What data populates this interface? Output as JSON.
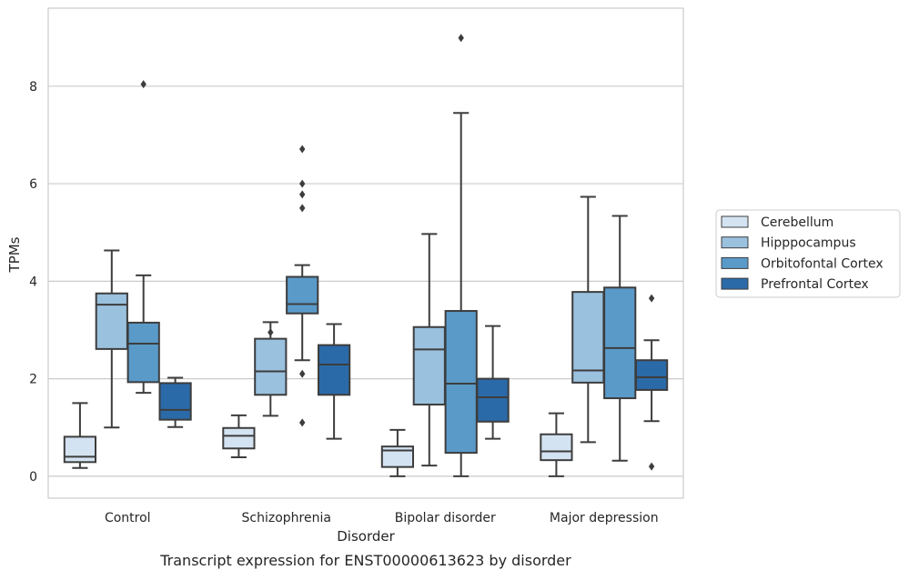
{
  "chart_data": {
    "type": "box",
    "title": "",
    "caption": "Transcript expression for ENST00000613623 by disorder",
    "xlabel": "Disorder",
    "ylabel": "TPMs",
    "ylim": [
      -0.45,
      9.6
    ],
    "yticks": [
      0,
      2,
      4,
      6,
      8
    ],
    "grid": true,
    "legend_position": "right",
    "categories": [
      "Control",
      "Schizophrenia",
      "Bipolar disorder",
      "Major depression"
    ],
    "series": [
      {
        "name": "Cerebellum",
        "color": "#d4e3f2",
        "boxes": [
          {
            "category": "Control",
            "whisker_low": 0.17,
            "q1": 0.29,
            "median": 0.4,
            "q3": 0.81,
            "whisker_high": 1.5,
            "outliers": []
          },
          {
            "category": "Schizophrenia",
            "whisker_low": 0.39,
            "q1": 0.57,
            "median": 0.83,
            "q3": 0.99,
            "whisker_high": 1.25,
            "outliers": []
          },
          {
            "category": "Bipolar disorder",
            "whisker_low": 0.0,
            "q1": 0.19,
            "median": 0.53,
            "q3": 0.61,
            "whisker_high": 0.95,
            "outliers": []
          },
          {
            "category": "Major depression",
            "whisker_low": 0.0,
            "q1": 0.33,
            "median": 0.51,
            "q3": 0.86,
            "whisker_high": 1.29,
            "outliers": []
          }
        ]
      },
      {
        "name": "Hipppocampus",
        "color": "#9ac1de",
        "boxes": [
          {
            "category": "Control",
            "whisker_low": 1.0,
            "q1": 2.61,
            "median": 3.52,
            "q3": 3.75,
            "whisker_high": 4.63,
            "outliers": []
          },
          {
            "category": "Schizophrenia",
            "whisker_low": 1.24,
            "q1": 1.67,
            "median": 2.15,
            "q3": 2.82,
            "whisker_high": 3.16,
            "outliers": [
              2.95
            ]
          },
          {
            "category": "Bipolar disorder",
            "whisker_low": 0.22,
            "q1": 1.47,
            "median": 2.6,
            "q3": 3.06,
            "whisker_high": 4.97,
            "outliers": []
          },
          {
            "category": "Major depression",
            "whisker_low": 0.7,
            "q1": 1.92,
            "median": 2.17,
            "q3": 3.78,
            "whisker_high": 5.73,
            "outliers": []
          }
        ]
      },
      {
        "name": "Orbitofontal Cortex",
        "color": "#5a9ac9",
        "boxes": [
          {
            "category": "Control",
            "whisker_low": 1.71,
            "q1": 1.93,
            "median": 2.72,
            "q3": 3.15,
            "whisker_high": 4.12,
            "outliers": [
              8.04
            ]
          },
          {
            "category": "Schizophrenia",
            "whisker_low": 2.38,
            "q1": 3.34,
            "median": 3.53,
            "q3": 4.09,
            "whisker_high": 4.33,
            "outliers": [
              6.71,
              6.0,
              5.78,
              5.5,
              2.1,
              1.1
            ]
          },
          {
            "category": "Bipolar disorder",
            "whisker_low": 0.0,
            "q1": 0.48,
            "median": 1.9,
            "q3": 3.39,
            "whisker_high": 7.45,
            "outliers": [
              8.99
            ]
          },
          {
            "category": "Major depression",
            "whisker_low": 0.32,
            "q1": 1.6,
            "median": 2.63,
            "q3": 3.87,
            "whisker_high": 5.34,
            "outliers": []
          }
        ]
      },
      {
        "name": "Prefrontal Cortex",
        "color": "#2b6aa8",
        "boxes": [
          {
            "category": "Control",
            "whisker_low": 1.01,
            "q1": 1.16,
            "median": 1.36,
            "q3": 1.91,
            "whisker_high": 2.02,
            "outliers": []
          },
          {
            "category": "Schizophrenia",
            "whisker_low": 0.77,
            "q1": 1.67,
            "median": 2.29,
            "q3": 2.69,
            "whisker_high": 3.12,
            "outliers": []
          },
          {
            "category": "Bipolar disorder",
            "whisker_low": 0.77,
            "q1": 1.12,
            "median": 1.62,
            "q3": 2.0,
            "whisker_high": 3.08,
            "outliers": []
          },
          {
            "category": "Major depression",
            "whisker_low": 1.13,
            "q1": 1.77,
            "median": 2.03,
            "q3": 2.38,
            "whisker_high": 2.79,
            "outliers": [
              3.65,
              0.2
            ]
          }
        ]
      }
    ]
  }
}
